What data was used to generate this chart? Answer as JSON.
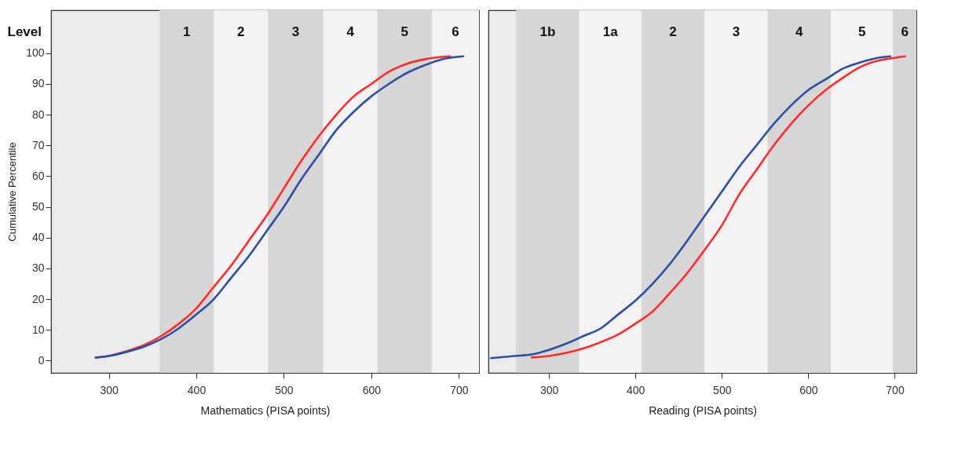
{
  "chart_data": [
    {
      "type": "line",
      "xlabel": "Mathematics (PISA points)",
      "ylabel": "Cumulative Percentile",
      "xlim": [
        234,
        723
      ],
      "xticks": [
        300,
        400,
        500,
        600,
        700
      ],
      "ylim": [
        -4,
        114
      ],
      "yticks": [
        0,
        10,
        20,
        30,
        40,
        50,
        60,
        70,
        80,
        90,
        100
      ],
      "grid": false,
      "line_style": "solid",
      "marker": "none",
      "annotations": [
        "Level"
      ],
      "bands": [
        {
          "axis": "x",
          "from": 358,
          "to": 420,
          "label": "1",
          "color": "#d6d6d6"
        },
        {
          "axis": "x",
          "from": 420,
          "to": 482,
          "label": "2",
          "color": "#f3f3f3"
        },
        {
          "axis": "x",
          "from": 482,
          "to": 545,
          "label": "3",
          "color": "#d6d6d6"
        },
        {
          "axis": "x",
          "from": 545,
          "to": 607,
          "label": "4",
          "color": "#f3f3f3"
        },
        {
          "axis": "x",
          "from": 607,
          "to": 669,
          "label": "5",
          "color": "#d6d6d6"
        },
        {
          "axis": "x",
          "from": 669,
          "to": 723,
          "label": "6",
          "color": "#f3f3f3"
        }
      ],
      "series": [
        {
          "color": "#ff2a2a",
          "x": [
            285,
            300,
            320,
            340,
            360,
            380,
            400,
            420,
            440,
            460,
            480,
            500,
            520,
            540,
            560,
            580,
            600,
            620,
            640,
            660,
            690
          ],
          "values": [
            1,
            1.5,
            3,
            5,
            8,
            12,
            17,
            24,
            31,
            39,
            47,
            56,
            65,
            73,
            80,
            86,
            90,
            94,
            96.5,
            98,
            99
          ]
        },
        {
          "color": "#2b4fa3",
          "x": [
            285,
            300,
            320,
            340,
            360,
            380,
            400,
            420,
            440,
            460,
            480,
            500,
            520,
            540,
            560,
            580,
            600,
            620,
            640,
            660,
            680,
            705
          ],
          "values": [
            1,
            1.5,
            2.8,
            4.5,
            7,
            10.5,
            15,
            20,
            27,
            34,
            42,
            50,
            59,
            67,
            75,
            81,
            86,
            90,
            93.5,
            96,
            98,
            99
          ]
        }
      ]
    },
    {
      "type": "line",
      "xlabel": "Reading (PISA points)",
      "xlim": [
        230,
        725
      ],
      "xticks": [
        300,
        400,
        500,
        600,
        700
      ],
      "ylim": [
        -4,
        114
      ],
      "tick_labels": "x",
      "grid": false,
      "line_style": "solid",
      "marker": "none",
      "bands": [
        {
          "axis": "x",
          "from": 262,
          "to": 335,
          "label": "1b",
          "color": "#d6d6d6"
        },
        {
          "axis": "x",
          "from": 335,
          "to": 407,
          "label": "1a",
          "color": "#f3f3f3"
        },
        {
          "axis": "x",
          "from": 407,
          "to": 480,
          "label": "2",
          "color": "#d6d6d6"
        },
        {
          "axis": "x",
          "from": 480,
          "to": 553,
          "label": "3",
          "color": "#f3f3f3"
        },
        {
          "axis": "x",
          "from": 553,
          "to": 626,
          "label": "4",
          "color": "#d6d6d6"
        },
        {
          "axis": "x",
          "from": 626,
          "to": 698,
          "label": "5",
          "color": "#f3f3f3"
        },
        {
          "axis": "x",
          "from": 698,
          "to": 725,
          "label": "6",
          "color": "#d6d6d6"
        }
      ],
      "series": [
        {
          "color": "#2b4fa3",
          "x": [
            233,
            260,
            280,
            300,
            320,
            340,
            360,
            380,
            400,
            420,
            440,
            460,
            480,
            500,
            520,
            540,
            560,
            580,
            600,
            620,
            640,
            660,
            680,
            695
          ],
          "values": [
            0.8,
            1.5,
            2,
            3.5,
            5.5,
            8,
            10.5,
            15,
            19.5,
            25,
            31.5,
            39,
            47,
            55,
            63,
            70,
            77,
            83,
            88,
            91.5,
            95,
            97,
            98.5,
            99
          ]
        },
        {
          "color": "#ff2a2a",
          "x": [
            280,
            300,
            320,
            340,
            360,
            380,
            400,
            420,
            440,
            460,
            480,
            500,
            520,
            540,
            560,
            580,
            600,
            620,
            640,
            660,
            680,
            700,
            712
          ],
          "values": [
            1,
            1.5,
            2.5,
            4,
            6,
            8.5,
            12,
            16,
            22,
            28.5,
            36,
            44,
            54,
            62,
            70,
            77,
            83,
            88,
            92,
            95.5,
            97.5,
            98.5,
            99
          ]
        }
      ]
    }
  ]
}
